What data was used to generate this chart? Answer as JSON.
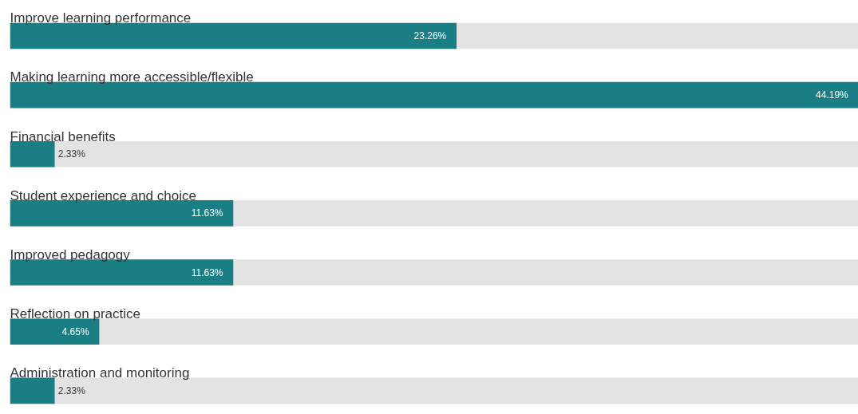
{
  "chart_data": {
    "type": "bar",
    "orientation": "horizontal",
    "categories": [
      "Improve learning performance",
      "Making learning more accessible/flexible",
      "Financial benefits",
      "Student experience and choice",
      "Improved pedagogy",
      "Reflection on practice",
      "Administration and monitoring"
    ],
    "values": [
      23.26,
      44.19,
      2.33,
      11.63,
      11.63,
      4.65,
      2.33
    ],
    "value_labels": [
      "23.26%",
      "44.19%",
      "2.33%",
      "11.63%",
      "11.63%",
      "4.65%",
      "2.33%"
    ],
    "color": "#1a7f84"
  }
}
